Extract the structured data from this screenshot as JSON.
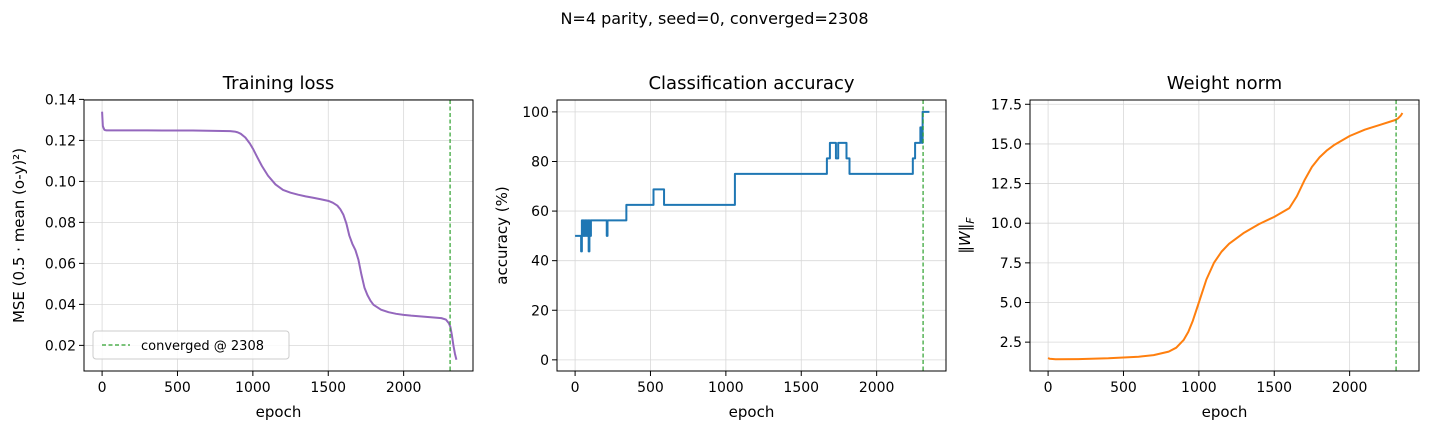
{
  "figure": {
    "title": "N=4 parity, seed=0, converged=2308"
  },
  "chart_data": [
    {
      "type": "line",
      "title": "Training loss",
      "xlabel": "epoch",
      "ylabel": "MSE  (0.5 · mean (o-y)²)",
      "xlim": [
        -120,
        2460
      ],
      "ylim": [
        0.0075,
        0.1397
      ],
      "xticks": [
        0,
        500,
        1000,
        1500,
        2000
      ],
      "yticks": [
        0.02,
        0.04,
        0.06,
        0.08,
        0.1,
        0.12,
        0.14
      ],
      "ytick_labels": [
        "0.02",
        "0.04",
        "0.06",
        "0.08",
        "0.10",
        "0.12",
        "0.14"
      ],
      "grid": true,
      "converged_epoch": 2308,
      "legend": {
        "entries": [
          "converged @ 2308"
        ],
        "location": "lower-left"
      },
      "series": [
        {
          "color": "#9467bd",
          "x": [
            0,
            2,
            5,
            10,
            15,
            20,
            30,
            50,
            100,
            200,
            300,
            400,
            500,
            600,
            700,
            800,
            850,
            880,
            900,
            920,
            950,
            980,
            1000,
            1030,
            1060,
            1100,
            1150,
            1200,
            1250,
            1300,
            1350,
            1400,
            1450,
            1500,
            1530,
            1560,
            1580,
            1600,
            1620,
            1640,
            1660,
            1680,
            1700,
            1720,
            1740,
            1760,
            1780,
            1800,
            1850,
            1900,
            1950,
            2000,
            2050,
            2100,
            2150,
            2200,
            2250,
            2280,
            2300,
            2310,
            2320,
            2330,
            2340,
            2350
          ],
          "y": [
            0.134,
            0.131,
            0.127,
            0.126,
            0.1252,
            0.125,
            0.1249,
            0.1249,
            0.1249,
            0.1249,
            0.1249,
            0.1248,
            0.1248,
            0.1248,
            0.1247,
            0.1246,
            0.1245,
            0.1243,
            0.1239,
            0.1232,
            0.1214,
            0.1185,
            0.116,
            0.1117,
            0.1075,
            0.1028,
            0.0985,
            0.0958,
            0.0945,
            0.0935,
            0.0927,
            0.092,
            0.0913,
            0.0905,
            0.0896,
            0.0882,
            0.0864,
            0.0838,
            0.0795,
            0.0735,
            0.0695,
            0.0665,
            0.0618,
            0.0545,
            0.0482,
            0.0445,
            0.0418,
            0.0398,
            0.0374,
            0.0362,
            0.0354,
            0.0349,
            0.0345,
            0.0342,
            0.0339,
            0.0336,
            0.0333,
            0.0326,
            0.0308,
            0.029,
            0.025,
            0.02,
            0.016,
            0.013
          ]
        }
      ]
    },
    {
      "type": "line",
      "title": "Classification accuracy",
      "xlabel": "epoch",
      "ylabel": "accuracy (%)",
      "xlim": [
        -120,
        2460
      ],
      "ylim": [
        -4.5,
        104.8
      ],
      "xticks": [
        0,
        500,
        1000,
        1500,
        2000
      ],
      "yticks": [
        0,
        20,
        40,
        60,
        80,
        100
      ],
      "grid": true,
      "converged_epoch": 2308,
      "series": [
        {
          "color": "#1f77b4",
          "step": true,
          "x": [
            0,
            30,
            40,
            45,
            50,
            55,
            60,
            65,
            70,
            75,
            80,
            85,
            90,
            95,
            100,
            105,
            110,
            115,
            210,
            215,
            220,
            340,
            520,
            590,
            1060,
            1670,
            1690,
            1730,
            1745,
            1760,
            1800,
            1820,
            1830,
            2240,
            2255,
            2290,
            2300,
            2305,
            2310,
            2350
          ],
          "y": [
            50,
            50,
            43.75,
            56.25,
            50,
            56.25,
            50,
            56.25,
            50,
            56.25,
            50,
            56.25,
            43.75,
            56.25,
            50,
            56.25,
            56.25,
            56.25,
            50,
            56.25,
            56.25,
            62.5,
            68.75,
            62.5,
            75,
            81.25,
            87.5,
            81.25,
            87.5,
            87.5,
            81.25,
            75,
            75,
            81.25,
            87.5,
            93.75,
            87.5,
            100,
            100,
            100
          ]
        }
      ]
    },
    {
      "type": "line",
      "title": "Weight norm",
      "xlabel": "epoch",
      "ylabel": "‖W‖F",
      "xlim": [
        -120,
        2460
      ],
      "ylim": [
        0.68,
        17.77
      ],
      "xticks": [
        0,
        500,
        1000,
        1500,
        2000
      ],
      "yticks": [
        2.5,
        5.0,
        7.5,
        10.0,
        12.5,
        15.0,
        17.5
      ],
      "ytick_labels": [
        "2.5",
        "5.0",
        "7.5",
        "10.0",
        "12.5",
        "15.0",
        "17.5"
      ],
      "grid": true,
      "converged_epoch": 2308,
      "series": [
        {
          "color": "#ff7f0e",
          "x": [
            0,
            10,
            50,
            200,
            400,
            600,
            700,
            800,
            850,
            900,
            930,
            960,
            1000,
            1050,
            1100,
            1150,
            1200,
            1300,
            1400,
            1500,
            1600,
            1650,
            1700,
            1750,
            1800,
            1850,
            1900,
            2000,
            2100,
            2200,
            2300,
            2320,
            2340,
            2350
          ],
          "y": [
            1.5,
            1.45,
            1.42,
            1.43,
            1.48,
            1.58,
            1.68,
            1.9,
            2.15,
            2.65,
            3.15,
            3.85,
            5.0,
            6.45,
            7.5,
            8.2,
            8.7,
            9.4,
            9.95,
            10.4,
            10.95,
            11.7,
            12.7,
            13.55,
            14.15,
            14.6,
            14.95,
            15.5,
            15.9,
            16.2,
            16.5,
            16.6,
            16.8,
            16.95
          ]
        }
      ]
    }
  ]
}
